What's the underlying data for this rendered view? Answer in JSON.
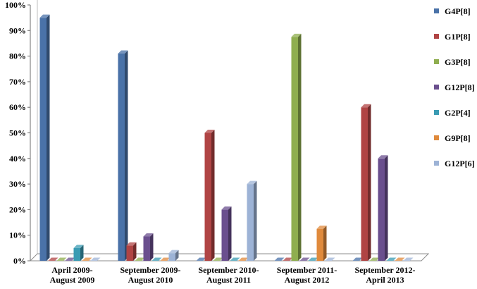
{
  "chart_data": {
    "type": "bar",
    "title": "",
    "xlabel": "",
    "ylabel": "",
    "ylim": [
      0,
      100
    ],
    "yticks": [
      "0%",
      "10%",
      "20%",
      "30%",
      "40%",
      "50%",
      "60%",
      "70%",
      "80%",
      "90%",
      "100%"
    ],
    "categories": [
      [
        "April 2009-",
        "August 2009"
      ],
      [
        "September 2009-",
        "August 2010"
      ],
      [
        "September 2010-",
        "August 2011"
      ],
      [
        "September 2011-",
        "August 2012"
      ],
      [
        "September 2012-",
        "April 2013"
      ]
    ],
    "legend_position": "right",
    "series": [
      {
        "name": "G4P[8]",
        "color": "#4a72a8",
        "values": [
          95,
          81,
          0,
          0,
          0
        ]
      },
      {
        "name": "G1P[8]",
        "color": "#b04444",
        "values": [
          0,
          6,
          50,
          0,
          60
        ]
      },
      {
        "name": "G3P[8]",
        "color": "#8fae4f",
        "values": [
          0,
          0,
          0,
          87.5,
          0
        ]
      },
      {
        "name": "G12P[8]",
        "color": "#6a4f8e",
        "values": [
          0,
          9.5,
          20,
          0,
          40
        ]
      },
      {
        "name": "G2P[4]",
        "color": "#3a9bb3",
        "values": [
          5,
          0,
          0,
          0,
          0
        ]
      },
      {
        "name": "G9P[8]",
        "color": "#e08a3c",
        "values": [
          0,
          0,
          0,
          12.5,
          0
        ]
      },
      {
        "name": "G12P[6]",
        "color": "#9db3d6",
        "values": [
          0,
          3,
          30,
          0,
          0
        ]
      }
    ]
  }
}
